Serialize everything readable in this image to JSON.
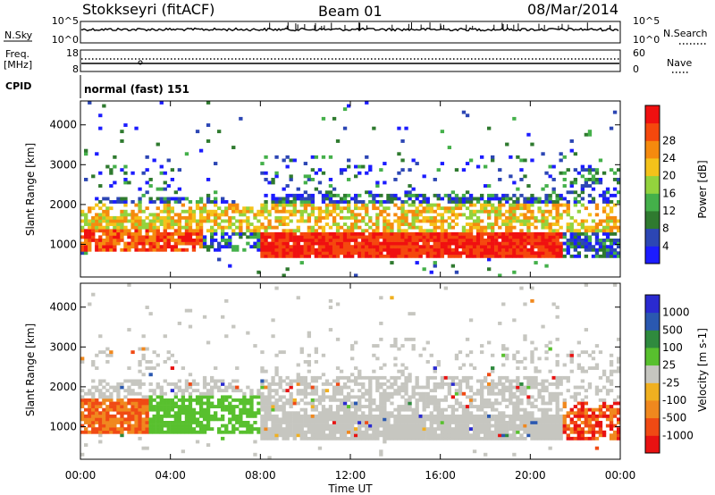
{
  "header": {
    "station": "Stokkseyri (fitACF)",
    "beam": "Beam 01",
    "date": "08/Mar/2014"
  },
  "top_panels": {
    "nsky_label": "N.Sky",
    "nsky_ticks": [
      "10^5",
      "10^0"
    ],
    "nsearch_label": "N.Search",
    "nsearch_ticks": [
      "10^5",
      "10^0"
    ],
    "freq_label": "Freq.",
    "freq_unit": "[MHz]",
    "freq_ticks": [
      "18",
      "8"
    ],
    "nave_label": "Nave",
    "nave_ticks": [
      "60",
      "0"
    ],
    "cpid_label": "CPID",
    "cpid_value": "normal (fast) 151"
  },
  "colors": {
    "power": [
      "#1c1cff",
      "#2c46b4",
      "#2f7a2f",
      "#44b04a",
      "#93d33d",
      "#f4c21a",
      "#f58a0e",
      "#f5480d",
      "#f01010"
    ],
    "velocity": [
      "#2a2ad0",
      "#2a58b0",
      "#2f8a3e",
      "#58c02e",
      "#c6c6c0",
      "#f0b020",
      "#f0881e",
      "#f04a14",
      "#e81212"
    ]
  },
  "chart_data": [
    {
      "type": "heatmap",
      "panel": "power",
      "xlabel": "Time UT",
      "ylabel": "Slant Range [km]",
      "x_ticks": [
        "00:00",
        "04:00",
        "08:00",
        "12:00",
        "16:00",
        "20:00",
        "00:00"
      ],
      "xlim_hours": [
        0,
        24
      ],
      "y_ticks": [
        "1000",
        "2000",
        "3000",
        "4000"
      ],
      "ylim_km": [
        180,
        4600
      ],
      "colorbar": {
        "label": "Power [dB]",
        "ticks": [
          "4",
          "8",
          "12",
          "16",
          "20",
          "24",
          "28"
        ],
        "range": [
          0,
          30
        ]
      }
    },
    {
      "type": "heatmap",
      "panel": "velocity",
      "xlabel": "Time UT",
      "ylabel": "Slant Range [km]",
      "x_ticks": [
        "00:00",
        "04:00",
        "08:00",
        "12:00",
        "16:00",
        "20:00",
        "00:00"
      ],
      "xlim_hours": [
        0,
        24
      ],
      "y_ticks": [
        "1000",
        "2000",
        "3000",
        "4000"
      ],
      "ylim_km": [
        180,
        4600
      ],
      "colorbar": {
        "label": "Velocity [m s-1]",
        "ticks": [
          "1000",
          "500",
          "100",
          "25",
          "-25",
          "-100",
          "-500",
          "-1000"
        ]
      }
    }
  ]
}
